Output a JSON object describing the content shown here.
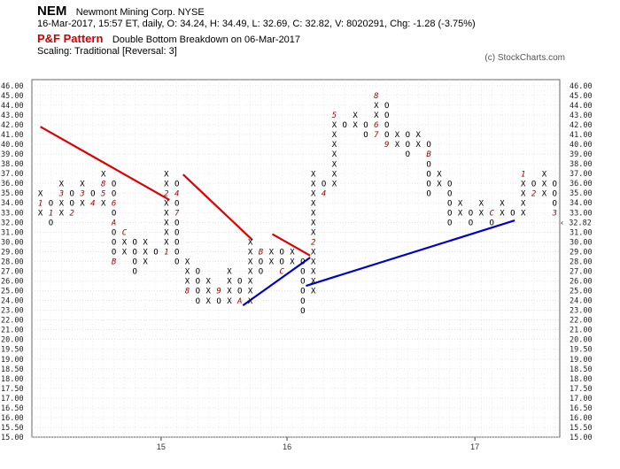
{
  "header": {
    "ticker": "NEM",
    "company": "Newmont Mining Corp.  NYSE",
    "quote_line": "16-Mar-2017, 15:57 ET, daily, O: 34.24, H: 34.49, L: 32.69, C: 32.82, V: 8020291, Chg: -1.28 (-3.75%)",
    "pattern_label": "P&F Pattern",
    "pattern_text": "Double Bottom Breakdown on 06-Mar-2017",
    "scaling": "Scaling: Traditional [Reversal: 3]",
    "copyright": "(c) StockCharts.com"
  },
  "chart_data": {
    "type": "point-and-figure",
    "price_levels": [
      "15.00",
      "15.50",
      "16.00",
      "16.50",
      "17.00",
      "17.50",
      "18.00",
      "18.50",
      "19.00",
      "19.50",
      "20.00",
      "21.00",
      "22.00",
      "23.00",
      "24.00",
      "25.00",
      "26.00",
      "27.00",
      "28.00",
      "29.00",
      "30.00",
      "31.00",
      "32.00",
      "33.00",
      "34.00",
      "35.00",
      "36.00",
      "37.00",
      "38.00",
      "39.00",
      "40.00",
      "41.00",
      "42.00",
      "43.00",
      "44.00",
      "45.00",
      "46.00"
    ],
    "left_axis_highlight": "32.00",
    "right_axis_label": "32.82",
    "x_labels": [
      {
        "text": "15",
        "col": 11.5
      },
      {
        "text": "16",
        "col": 23.5
      },
      {
        "text": "17",
        "col": 41.4
      }
    ],
    "columns": [
      {
        "type": "X",
        "low": 23,
        "high": 25,
        "labels": {
          "24": "1"
        }
      },
      {
        "type": "O",
        "low": 22,
        "high": 24,
        "labels": {
          "23": "1"
        }
      },
      {
        "type": "X",
        "low": 23,
        "high": 26,
        "labels": {
          "25": "3"
        }
      },
      {
        "type": "O",
        "low": 23,
        "high": 25,
        "labels": {
          "23": "2"
        }
      },
      {
        "type": "X",
        "low": 24,
        "high": 26,
        "labels": {
          "25": "3"
        }
      },
      {
        "type": "O",
        "low": 24,
        "high": 25,
        "labels": {
          "24": "4"
        }
      },
      {
        "type": "X",
        "low": 24,
        "high": 27,
        "labels": {
          "25": "5",
          "26": "8"
        }
      },
      {
        "type": "O",
        "low": 18,
        "high": 26,
        "labels": {
          "24": "6",
          "22": "A",
          "18": "B"
        }
      },
      {
        "type": "X",
        "low": 19,
        "high": 21,
        "labels": {
          "21": "C"
        }
      },
      {
        "type": "O",
        "low": 17,
        "high": 20,
        "labels": {}
      },
      {
        "type": "X",
        "low": 18,
        "high": 20,
        "labels": {}
      },
      {
        "type": "O",
        "low": 19,
        "high": 19,
        "labels": {}
      },
      {
        "type": "X",
        "low": 19,
        "high": 27,
        "labels": {
          "19": "1",
          "25": "2"
        }
      },
      {
        "type": "O",
        "low": 18,
        "high": 26,
        "labels": {
          "25": "4",
          "23": "7"
        }
      },
      {
        "type": "X",
        "low": 15,
        "high": 18,
        "labels": {
          "15": "8"
        }
      },
      {
        "type": "O",
        "low": 14,
        "high": 17,
        "labels": {}
      },
      {
        "type": "X",
        "low": 14,
        "high": 16,
        "labels": {}
      },
      {
        "type": "O",
        "low": 14,
        "high": 15,
        "labels": {
          "15": "9"
        }
      },
      {
        "type": "X",
        "low": 14,
        "high": 17,
        "labels": {}
      },
      {
        "type": "O",
        "low": 14,
        "high": 16,
        "labels": {
          "14": "A"
        }
      },
      {
        "type": "X",
        "low": 14,
        "high": 20,
        "labels": {}
      },
      {
        "type": "O",
        "low": 17,
        "high": 19,
        "labels": {
          "19": "B"
        }
      },
      {
        "type": "X",
        "low": 18,
        "high": 19,
        "labels": {}
      },
      {
        "type": "O",
        "low": 17,
        "high": 19,
        "labels": {
          "17": "C"
        }
      },
      {
        "type": "X",
        "low": 18,
        "high": 19,
        "labels": {
          "17": "1"
        }
      },
      {
        "type": "O",
        "low": 13,
        "high": 18,
        "labels": {}
      },
      {
        "type": "X",
        "low": 15,
        "high": 27,
        "labels": {
          "20": "2"
        }
      },
      {
        "type": "O",
        "low": 25,
        "high": 26,
        "labels": {
          "25": "4"
        }
      },
      {
        "type": "X",
        "low": 26,
        "high": 33,
        "labels": {
          "33": "5"
        }
      },
      {
        "type": "O",
        "low": 32,
        "high": 32,
        "labels": {}
      },
      {
        "type": "X",
        "low": 32,
        "high": 33,
        "labels": {}
      },
      {
        "type": "O",
        "low": 31,
        "high": 32,
        "labels": {}
      },
      {
        "type": "X",
        "low": 31,
        "high": 35,
        "labels": {
          "35": "8",
          "31": "7",
          "32": "6"
        }
      },
      {
        "type": "O",
        "low": 30,
        "high": 34,
        "labels": {
          "30": "9"
        }
      },
      {
        "type": "X",
        "low": 30,
        "high": 31,
        "labels": {}
      },
      {
        "type": "O",
        "low": 29,
        "high": 31,
        "labels": {}
      },
      {
        "type": "X",
        "low": 30,
        "high": 31,
        "labels": {}
      },
      {
        "type": "O",
        "low": 25,
        "high": 30,
        "labels": {
          "29": "B"
        }
      },
      {
        "type": "X",
        "low": 26,
        "high": 27,
        "labels": {
          "28": "A"
        }
      },
      {
        "type": "O",
        "low": 22,
        "high": 26,
        "labels": {}
      },
      {
        "type": "X",
        "low": 23,
        "high": 24,
        "labels": {}
      },
      {
        "type": "O",
        "low": 22,
        "high": 23,
        "labels": {}
      },
      {
        "type": "X",
        "low": 23,
        "high": 24,
        "labels": {}
      },
      {
        "type": "O",
        "low": 22,
        "high": 23,
        "labels": {
          "23": "C"
        }
      },
      {
        "type": "X",
        "low": 23,
        "high": 24,
        "labels": {}
      },
      {
        "type": "O",
        "low": 23,
        "high": 23,
        "labels": {}
      },
      {
        "type": "X",
        "low": 23,
        "high": 27,
        "labels": {
          "27": "1"
        }
      },
      {
        "type": "O",
        "low": 25,
        "high": 26,
        "labels": {
          "25": "2"
        }
      },
      {
        "type": "X",
        "low": 25,
        "high": 27,
        "labels": {}
      },
      {
        "type": "O",
        "low": 23,
        "high": 26,
        "labels": {
          "23": "3"
        }
      }
    ],
    "trendlines": [
      {
        "color": "#e00000",
        "from": [
          0,
          31.8
        ],
        "to": [
          12.3,
          24.3
        ]
      },
      {
        "color": "#e00000",
        "from": [
          13.6,
          26.9
        ],
        "to": [
          20.2,
          20.2
        ]
      },
      {
        "color": "#e00000",
        "from": [
          22.1,
          20.8
        ],
        "to": [
          25.7,
          18.6
        ]
      },
      {
        "color": "#0000cc",
        "from": [
          19.3,
          13.5
        ],
        "to": [
          25.7,
          18.4
        ]
      },
      {
        "color": "#0000cc",
        "from": [
          25.3,
          15.5
        ],
        "to": [
          45.2,
          22.2
        ]
      }
    ],
    "colors": {
      "x_mark": "#000000",
      "o_mark": "#000000",
      "month_label": "#990000",
      "grid": "#d8d8d8",
      "axis_highlight": "#cc0000",
      "last_price": "#cc0000"
    }
  }
}
